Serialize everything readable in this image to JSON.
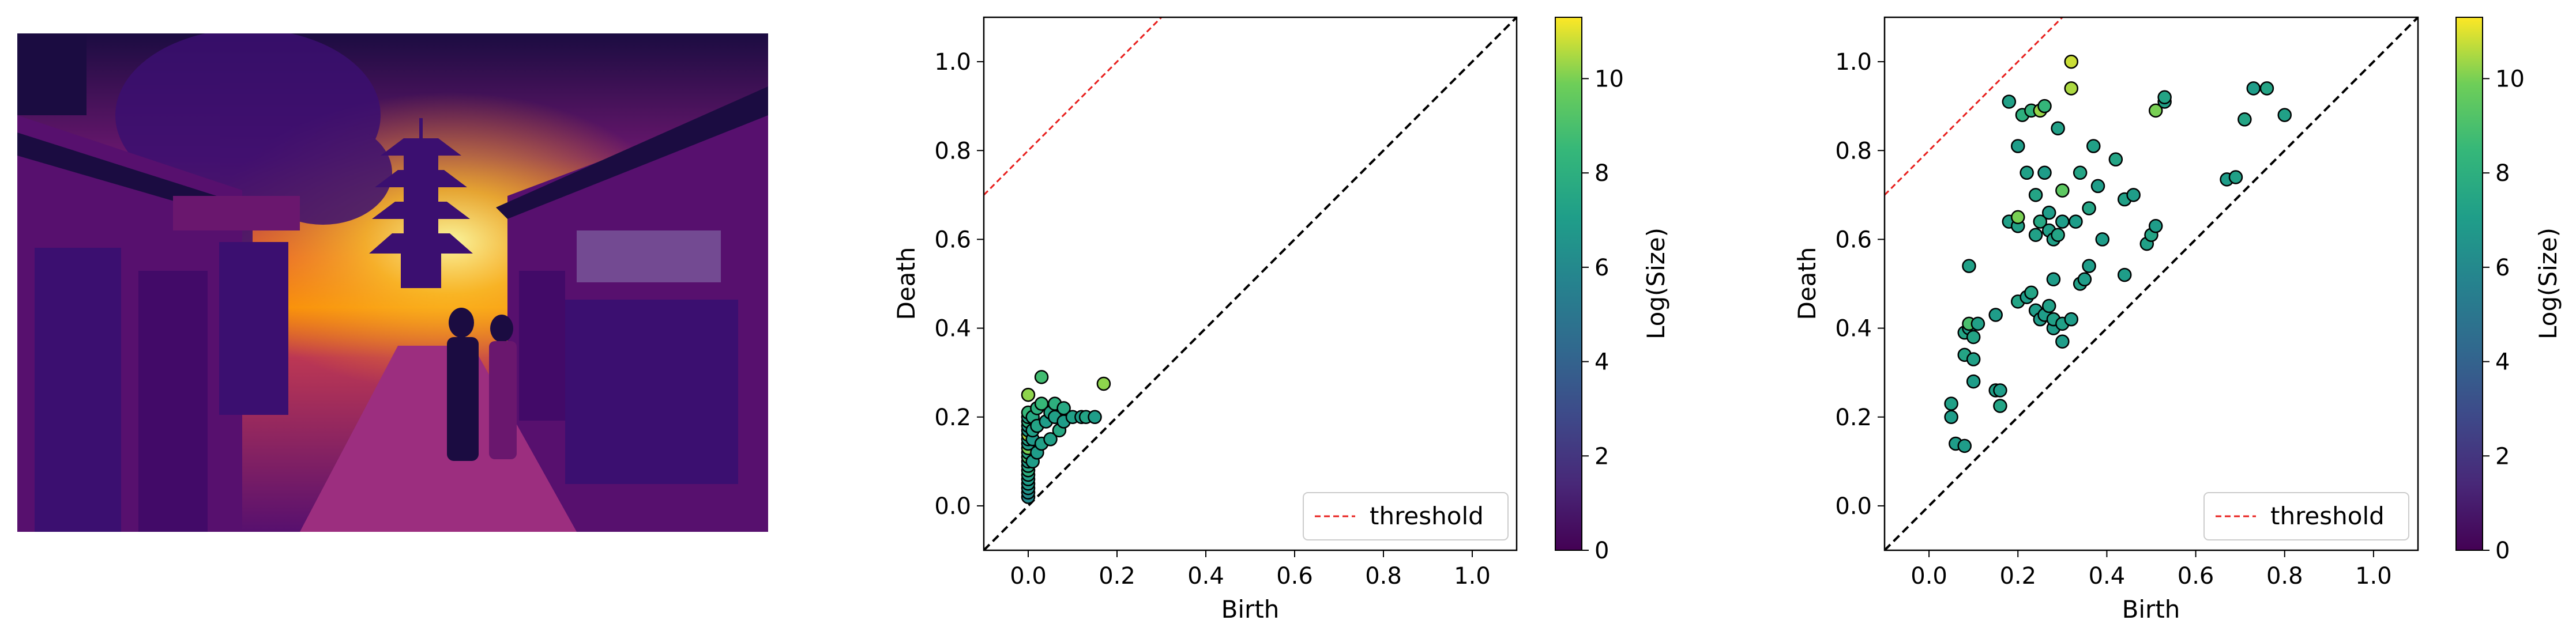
{
  "chart_data": [
    {
      "type": "heatmap",
      "colormap": "inferno",
      "description_visible": "grayscale street scene with pagoda rendered in inferno colormap",
      "axes_visible": false
    },
    {
      "type": "scatter",
      "xlabel": "Birth",
      "ylabel": "Death",
      "xlim": [
        -0.1,
        1.1
      ],
      "ylim": [
        -0.1,
        1.1
      ],
      "xticks": [
        "0.0",
        "0.2",
        "0.4",
        "0.6",
        "0.8",
        "1.0"
      ],
      "yticks": [
        "0.0",
        "0.2",
        "0.4",
        "0.6",
        "0.8",
        "1.0"
      ],
      "diagonal": {
        "style": "dashed",
        "color": "#000000"
      },
      "threshold": {
        "label": "threshold",
        "color": "#e8201e",
        "style": "dashed",
        "offset": 0.8
      },
      "legend_position": "lower-right",
      "colorbar": {
        "label": "Log(Size)",
        "colormap": "viridis",
        "range": [
          0,
          11.3
        ],
        "ticks": [
          "0",
          "2",
          "4",
          "6",
          "8",
          "10"
        ]
      },
      "points": [
        {
          "x": 0.0,
          "y": 0.02,
          "c": 6.0
        },
        {
          "x": 0.0,
          "y": 0.03,
          "c": 6.2
        },
        {
          "x": 0.0,
          "y": 0.04,
          "c": 6.5
        },
        {
          "x": 0.0,
          "y": 0.05,
          "c": 6.8
        },
        {
          "x": 0.0,
          "y": 0.06,
          "c": 7.0
        },
        {
          "x": 0.0,
          "y": 0.07,
          "c": 7.2
        },
        {
          "x": 0.0,
          "y": 0.08,
          "c": 8.0
        },
        {
          "x": 0.0,
          "y": 0.09,
          "c": 7.5
        },
        {
          "x": 0.0,
          "y": 0.1,
          "c": 7.0
        },
        {
          "x": 0.0,
          "y": 0.11,
          "c": 9.0
        },
        {
          "x": 0.0,
          "y": 0.12,
          "c": 7.5
        },
        {
          "x": 0.0,
          "y": 0.13,
          "c": 10.0
        },
        {
          "x": 0.0,
          "y": 0.14,
          "c": 7.0
        },
        {
          "x": 0.0,
          "y": 0.15,
          "c": 7.2
        },
        {
          "x": 0.0,
          "y": 0.16,
          "c": 10.5
        },
        {
          "x": 0.0,
          "y": 0.17,
          "c": 6.8
        },
        {
          "x": 0.0,
          "y": 0.18,
          "c": 7.0
        },
        {
          "x": 0.0,
          "y": 0.19,
          "c": 8.0
        },
        {
          "x": 0.0,
          "y": 0.2,
          "c": 7.3
        },
        {
          "x": 0.0,
          "y": 0.21,
          "c": 8.5
        },
        {
          "x": 0.0,
          "y": 0.25,
          "c": 10.2
        },
        {
          "x": 0.01,
          "y": 0.1,
          "c": 7.0
        },
        {
          "x": 0.01,
          "y": 0.15,
          "c": 6.8
        },
        {
          "x": 0.01,
          "y": 0.17,
          "c": 7.2
        },
        {
          "x": 0.01,
          "y": 0.2,
          "c": 7.6
        },
        {
          "x": 0.02,
          "y": 0.12,
          "c": 7.0
        },
        {
          "x": 0.02,
          "y": 0.18,
          "c": 7.4
        },
        {
          "x": 0.02,
          "y": 0.22,
          "c": 8.0
        },
        {
          "x": 0.03,
          "y": 0.14,
          "c": 7.2
        },
        {
          "x": 0.03,
          "y": 0.23,
          "c": 8.5
        },
        {
          "x": 0.03,
          "y": 0.29,
          "c": 8.8
        },
        {
          "x": 0.04,
          "y": 0.19,
          "c": 7.0
        },
        {
          "x": 0.05,
          "y": 0.15,
          "c": 7.2
        },
        {
          "x": 0.05,
          "y": 0.21,
          "c": 7.4
        },
        {
          "x": 0.06,
          "y": 0.2,
          "c": 7.2
        },
        {
          "x": 0.06,
          "y": 0.23,
          "c": 8.0
        },
        {
          "x": 0.07,
          "y": 0.17,
          "c": 7.6
        },
        {
          "x": 0.08,
          "y": 0.19,
          "c": 7.0
        },
        {
          "x": 0.08,
          "y": 0.22,
          "c": 7.6
        },
        {
          "x": 0.1,
          "y": 0.2,
          "c": 7.2
        },
        {
          "x": 0.12,
          "y": 0.2,
          "c": 7.0
        },
        {
          "x": 0.13,
          "y": 0.2,
          "c": 7.4
        },
        {
          "x": 0.15,
          "y": 0.2,
          "c": 7.0
        },
        {
          "x": 0.17,
          "y": 0.275,
          "c": 10.2
        }
      ]
    },
    {
      "type": "scatter",
      "xlabel": "Birth",
      "ylabel": "Death",
      "xlim": [
        -0.1,
        1.1
      ],
      "ylim": [
        -0.1,
        1.1
      ],
      "xticks": [
        "0.0",
        "0.2",
        "0.4",
        "0.6",
        "0.8",
        "1.0"
      ],
      "yticks": [
        "0.0",
        "0.2",
        "0.4",
        "0.6",
        "0.8",
        "1.0"
      ],
      "diagonal": {
        "style": "dashed",
        "color": "#000000"
      },
      "threshold": {
        "label": "threshold",
        "color": "#e8201e",
        "style": "dashed",
        "offset": 0.8
      },
      "legend_position": "lower-right",
      "colorbar": {
        "label": "Log(Size)",
        "colormap": "viridis",
        "range": [
          0,
          11.3
        ],
        "ticks": [
          "0",
          "2",
          "4",
          "6",
          "8",
          "10"
        ]
      },
      "points": [
        {
          "x": 0.05,
          "y": 0.2,
          "c": 7.0
        },
        {
          "x": 0.05,
          "y": 0.23,
          "c": 7.2
        },
        {
          "x": 0.06,
          "y": 0.14,
          "c": 7.0
        },
        {
          "x": 0.08,
          "y": 0.135,
          "c": 7.0
        },
        {
          "x": 0.08,
          "y": 0.34,
          "c": 7.4
        },
        {
          "x": 0.08,
          "y": 0.39,
          "c": 7.4
        },
        {
          "x": 0.09,
          "y": 0.4,
          "c": 7.0
        },
        {
          "x": 0.09,
          "y": 0.41,
          "c": 9.0
        },
        {
          "x": 0.09,
          "y": 0.54,
          "c": 7.2
        },
        {
          "x": 0.1,
          "y": 0.28,
          "c": 7.0
        },
        {
          "x": 0.1,
          "y": 0.33,
          "c": 7.2
        },
        {
          "x": 0.1,
          "y": 0.38,
          "c": 7.4
        },
        {
          "x": 0.11,
          "y": 0.41,
          "c": 7.2
        },
        {
          "x": 0.15,
          "y": 0.26,
          "c": 7.2
        },
        {
          "x": 0.15,
          "y": 0.43,
          "c": 7.0
        },
        {
          "x": 0.16,
          "y": 0.225,
          "c": 7.4
        },
        {
          "x": 0.16,
          "y": 0.26,
          "c": 7.0
        },
        {
          "x": 0.18,
          "y": 0.64,
          "c": 7.2
        },
        {
          "x": 0.18,
          "y": 0.91,
          "c": 7.2
        },
        {
          "x": 0.2,
          "y": 0.46,
          "c": 7.4
        },
        {
          "x": 0.2,
          "y": 0.63,
          "c": 7.2
        },
        {
          "x": 0.2,
          "y": 0.81,
          "c": 7.0
        },
        {
          "x": 0.2,
          "y": 0.65,
          "c": 10.0
        },
        {
          "x": 0.21,
          "y": 0.88,
          "c": 8.0
        },
        {
          "x": 0.22,
          "y": 0.47,
          "c": 7.0
        },
        {
          "x": 0.22,
          "y": 0.75,
          "c": 7.2
        },
        {
          "x": 0.23,
          "y": 0.48,
          "c": 7.4
        },
        {
          "x": 0.23,
          "y": 0.89,
          "c": 8.2
        },
        {
          "x": 0.24,
          "y": 0.44,
          "c": 7.0
        },
        {
          "x": 0.24,
          "y": 0.61,
          "c": 7.2
        },
        {
          "x": 0.24,
          "y": 0.7,
          "c": 7.4
        },
        {
          "x": 0.25,
          "y": 0.42,
          "c": 7.0
        },
        {
          "x": 0.25,
          "y": 0.64,
          "c": 7.6
        },
        {
          "x": 0.25,
          "y": 0.89,
          "c": 10.3
        },
        {
          "x": 0.26,
          "y": 0.43,
          "c": 7.0
        },
        {
          "x": 0.26,
          "y": 0.75,
          "c": 7.0
        },
        {
          "x": 0.26,
          "y": 0.9,
          "c": 8.4
        },
        {
          "x": 0.27,
          "y": 0.45,
          "c": 7.2
        },
        {
          "x": 0.27,
          "y": 0.62,
          "c": 7.2
        },
        {
          "x": 0.27,
          "y": 0.66,
          "c": 7.0
        },
        {
          "x": 0.28,
          "y": 0.4,
          "c": 7.0
        },
        {
          "x": 0.28,
          "y": 0.42,
          "c": 7.2
        },
        {
          "x": 0.28,
          "y": 0.51,
          "c": 7.0
        },
        {
          "x": 0.28,
          "y": 0.6,
          "c": 7.2
        },
        {
          "x": 0.29,
          "y": 0.61,
          "c": 7.4
        },
        {
          "x": 0.29,
          "y": 0.85,
          "c": 7.2
        },
        {
          "x": 0.3,
          "y": 0.37,
          "c": 7.0
        },
        {
          "x": 0.3,
          "y": 0.41,
          "c": 7.2
        },
        {
          "x": 0.3,
          "y": 0.64,
          "c": 7.0
        },
        {
          "x": 0.3,
          "y": 0.71,
          "c": 9.5
        },
        {
          "x": 0.32,
          "y": 0.42,
          "c": 7.0
        },
        {
          "x": 0.32,
          "y": 0.94,
          "c": 10.5
        },
        {
          "x": 0.32,
          "y": 1.0,
          "c": 10.8
        },
        {
          "x": 0.33,
          "y": 0.64,
          "c": 7.0
        },
        {
          "x": 0.34,
          "y": 0.5,
          "c": 7.2
        },
        {
          "x": 0.34,
          "y": 0.75,
          "c": 7.4
        },
        {
          "x": 0.35,
          "y": 0.51,
          "c": 7.0
        },
        {
          "x": 0.36,
          "y": 0.54,
          "c": 7.0
        },
        {
          "x": 0.36,
          "y": 0.67,
          "c": 7.4
        },
        {
          "x": 0.37,
          "y": 0.81,
          "c": 7.2
        },
        {
          "x": 0.38,
          "y": 0.72,
          "c": 7.0
        },
        {
          "x": 0.39,
          "y": 0.6,
          "c": 7.0
        },
        {
          "x": 0.42,
          "y": 0.78,
          "c": 7.4
        },
        {
          "x": 0.44,
          "y": 0.52,
          "c": 7.0
        },
        {
          "x": 0.44,
          "y": 0.69,
          "c": 7.2
        },
        {
          "x": 0.46,
          "y": 0.7,
          "c": 7.0
        },
        {
          "x": 0.49,
          "y": 0.59,
          "c": 7.2
        },
        {
          "x": 0.5,
          "y": 0.61,
          "c": 7.4
        },
        {
          "x": 0.51,
          "y": 0.63,
          "c": 7.0
        },
        {
          "x": 0.51,
          "y": 0.89,
          "c": 10.0
        },
        {
          "x": 0.53,
          "y": 0.91,
          "c": 7.2
        },
        {
          "x": 0.53,
          "y": 0.92,
          "c": 7.4
        },
        {
          "x": 0.67,
          "y": 0.735,
          "c": 7.0
        },
        {
          "x": 0.69,
          "y": 0.74,
          "c": 7.2
        },
        {
          "x": 0.71,
          "y": 0.87,
          "c": 7.4
        },
        {
          "x": 0.73,
          "y": 0.94,
          "c": 7.0
        },
        {
          "x": 0.76,
          "y": 0.94,
          "c": 7.4
        },
        {
          "x": 0.8,
          "y": 0.88,
          "c": 7.2
        }
      ]
    }
  ]
}
